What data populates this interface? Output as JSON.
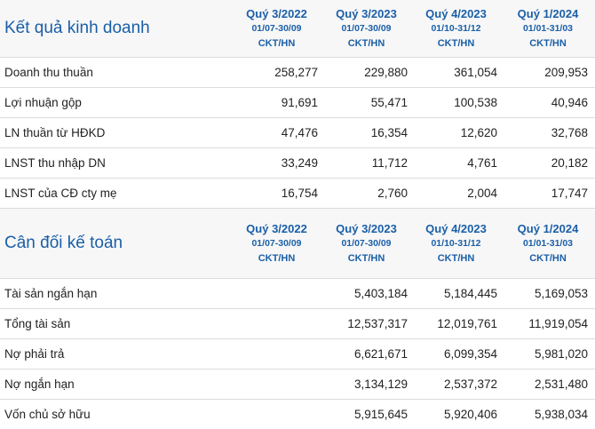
{
  "income": {
    "title": "Kết quả kinh doanh",
    "columns": [
      {
        "quarter": "Quý 3/2022",
        "range": "01/07-30/09",
        "type": "CKT/HN"
      },
      {
        "quarter": "Quý 3/2023",
        "range": "01/07-30/09",
        "type": "CKT/HN"
      },
      {
        "quarter": "Quý 4/2023",
        "range": "01/10-31/12",
        "type": "CKT/HN"
      },
      {
        "quarter": "Quý 1/2024",
        "range": "01/01-31/03",
        "type": "CKT/HN"
      }
    ],
    "rows": [
      {
        "label": "Doanh thu thuần",
        "values": [
          "258,277",
          "229,880",
          "361,054",
          "209,953"
        ]
      },
      {
        "label": "Lợi nhuận gộp",
        "values": [
          "91,691",
          "55,471",
          "100,538",
          "40,946"
        ]
      },
      {
        "label": "LN thuần từ HĐKD",
        "values": [
          "47,476",
          "16,354",
          "12,620",
          "32,768"
        ]
      },
      {
        "label": "LNST thu nhập DN",
        "values": [
          "33,249",
          "11,712",
          "4,761",
          "20,182"
        ]
      },
      {
        "label": "LNST của CĐ cty mẹ",
        "values": [
          "16,754",
          "2,760",
          "2,004",
          "17,747"
        ]
      }
    ]
  },
  "balance": {
    "title": "Cân đối kế toán",
    "columns": [
      {
        "quarter": "Quý 3/2022",
        "range": "01/07-30/09",
        "type": "CKT/HN"
      },
      {
        "quarter": "Quý 3/2023",
        "range": "01/07-30/09",
        "type": "CKT/HN"
      },
      {
        "quarter": "Quý 4/2023",
        "range": "01/10-31/12",
        "type": "CKT/HN"
      },
      {
        "quarter": "Quý 1/2024",
        "range": "01/01-31/03",
        "type": "CKT/HN"
      }
    ],
    "rows": [
      {
        "label": "Tài sản ngắn hạn",
        "values": [
          "",
          "5,403,184",
          "5,184,445",
          "5,169,053"
        ]
      },
      {
        "label": "Tổng tài sản",
        "values": [
          "",
          "12,537,317",
          "12,019,761",
          "11,919,054"
        ]
      },
      {
        "label": "Nợ phải trả",
        "values": [
          "",
          "6,621,671",
          "6,099,354",
          "5,981,020"
        ]
      },
      {
        "label": "Nợ ngắn hạn",
        "values": [
          "",
          "3,134,129",
          "2,537,372",
          "2,531,480"
        ]
      },
      {
        "label": "Vốn chủ sở hữu",
        "values": [
          "",
          "5,915,645",
          "5,920,406",
          "5,938,034"
        ]
      }
    ]
  }
}
